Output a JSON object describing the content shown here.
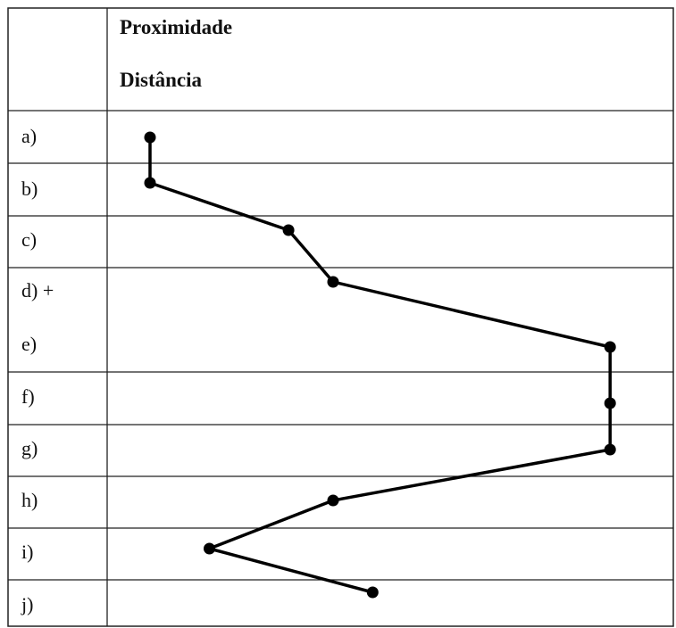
{
  "header": {
    "top_label": "Proximidade",
    "bottom_label": "Distância"
  },
  "rows": [
    {
      "label": "a)"
    },
    {
      "label": "b)"
    },
    {
      "label": "c)"
    },
    {
      "label": "d) +"
    },
    {
      "label": "e)"
    },
    {
      "label": "f)"
    },
    {
      "label": "g)"
    },
    {
      "label": "h)"
    },
    {
      "label": "i)"
    },
    {
      "label": "j)"
    }
  ],
  "profile_points": [
    0.0,
    0.0,
    0.28,
    0.37,
    0.93,
    0.93,
    0.93,
    0.37,
    0.12,
    0.45
  ]
}
